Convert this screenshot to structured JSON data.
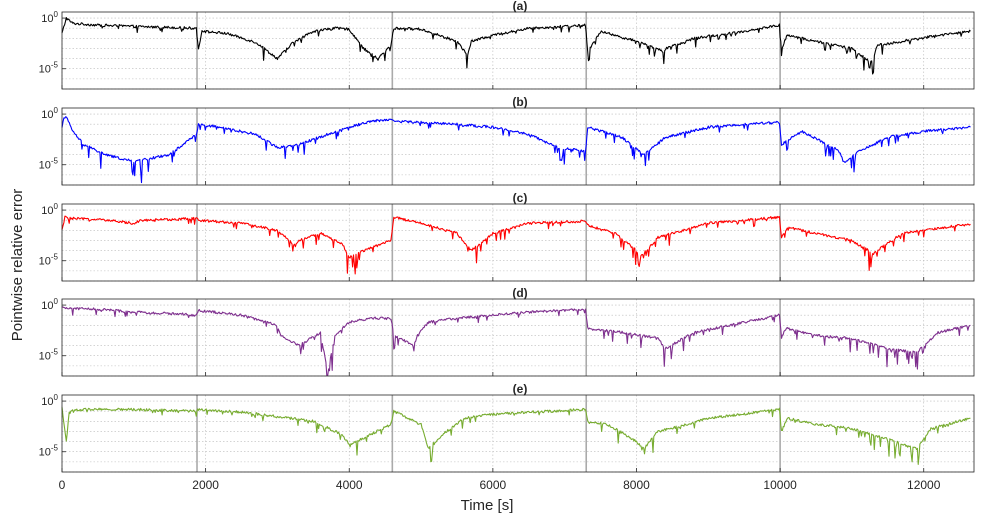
{
  "figure": {
    "ylabel": "Pointwise relative error",
    "xlabel": "Time [s]"
  },
  "chart_data": {
    "type": "line",
    "x_axis": {
      "label": "Time [s]",
      "range": [
        0,
        12700
      ],
      "ticks": [
        0,
        2000,
        4000,
        6000,
        8000,
        10000,
        12000
      ],
      "tick_labels": [
        "0",
        "2000",
        "4000",
        "6000",
        "8000",
        "10000",
        "12000"
      ]
    },
    "y_scale": "log",
    "shared_ylabel": "Pointwise relative error",
    "grid": true,
    "segment_boundaries": [
      1880,
      4600,
      7300,
      10000
    ],
    "panels": [
      {
        "title": "(a)",
        "color": "#000000",
        "y_range_exp": [
          -7,
          0.6
        ],
        "y_ticks": [
          {
            "base": "10",
            "exp": "0",
            "value": 1
          },
          {
            "base": "10",
            "exp": "-5",
            "value": 1e-05
          }
        ],
        "series": [
          {
            "x": [
              0,
              60,
              150,
              500,
              1000,
              1500,
              1870,
              1900,
              1950,
              2300,
              2700,
              3000,
              3200,
              3500,
              3800,
              4000,
              4200,
              4400,
              4580,
              4620,
              5000,
              5500,
              5650,
              5700,
              6000,
              6500,
              7000,
              7290,
              7320,
              7500,
              8000,
              8380,
              8420,
              8800,
              9500,
              9990,
              10020,
              10100,
              10500,
              11000,
              11250,
              11300,
              11350,
              11700,
              12200,
              12650
            ],
            "y": [
              0.03,
              1.0,
              0.3,
              0.2,
              0.15,
              0.12,
              0.1,
              0.001,
              0.05,
              0.03,
              0.004,
              0.0001,
              0.003,
              0.05,
              0.1,
              0.08,
              0.001,
              0.0001,
              0.002,
              0.1,
              0.08,
              0.005,
              0.0002,
              0.005,
              0.02,
              0.1,
              0.15,
              0.2,
              0.0005,
              0.05,
              0.005,
              0.0005,
              0.001,
              0.01,
              0.05,
              0.2,
              0.001,
              0.02,
              0.005,
              0.001,
              5e-05,
              0.0001,
              0.002,
              0.005,
              0.02,
              0.05
            ]
          }
        ]
      },
      {
        "title": "(b)",
        "color": "#0000FF",
        "y_range_exp": [
          -7,
          0.6
        ],
        "y_ticks": [
          {
            "base": "10",
            "exp": "0",
            "value": 1
          },
          {
            "base": "10",
            "exp": "-5",
            "value": 1e-05
          }
        ],
        "series": [
          {
            "x": [
              0,
              40,
              150,
              300,
              600,
              1000,
              1500,
              1870,
              1900,
              2200,
              2700,
              3000,
              3300,
              3700,
              4000,
              4300,
              4580,
              4620,
              5000,
              5500,
              6000,
              6500,
              6900,
              7290,
              7320,
              7800,
              8100,
              8400,
              9000,
              9500,
              9990,
              10020,
              10300,
              10800,
              10900,
              11100,
              11500,
              12000,
              12650
            ],
            "y": [
              0.05,
              1.0,
              0.02,
              0.001,
              0.0001,
              2e-05,
              0.0001,
              0.01,
              0.1,
              0.05,
              0.01,
              0.0005,
              0.001,
              0.01,
              0.05,
              0.2,
              0.3,
              0.2,
              0.15,
              0.1,
              0.05,
              0.01,
              0.0005,
              0.0002,
              0.05,
              0.005,
              0.0001,
              0.005,
              0.05,
              0.1,
              0.15,
              0.001,
              0.02,
              0.0003,
              2e-05,
              0.0002,
              0.005,
              0.02,
              0.05
            ]
          }
        ]
      },
      {
        "title": "(c)",
        "color": "#FF0000",
        "y_range_exp": [
          -7,
          0.6
        ],
        "y_ticks": [
          {
            "base": "10",
            "exp": "0",
            "value": 1
          },
          {
            "base": "10",
            "exp": "-5",
            "value": 1e-05
          }
        ],
        "series": [
          {
            "x": [
              0,
              40,
              100,
              500,
              1000,
              1100,
              1500,
              1870,
              1900,
              2500,
              3000,
              3250,
              3300,
              3600,
              3900,
              4000,
              4200,
              4580,
              4620,
              5000,
              5500,
              5700,
              6000,
              6500,
              7290,
              7320,
              7700,
              8000,
              8050,
              8300,
              9000,
              9990,
              10020,
              10100,
              10500,
              11000,
              11300,
              11350,
              11700,
              12300,
              12650
            ],
            "y": [
              0.01,
              0.2,
              0.15,
              0.12,
              0.05,
              0.1,
              0.12,
              0.15,
              0.1,
              0.05,
              0.01,
              0.0003,
              0.001,
              0.005,
              0.0005,
              2e-05,
              0.0001,
              0.001,
              0.2,
              0.05,
              0.005,
              0.0001,
              0.005,
              0.05,
              0.08,
              0.03,
              0.005,
              0.0001,
              2e-05,
              0.002,
              0.05,
              0.2,
              0.002,
              0.02,
              0.005,
              0.001,
              5e-05,
              0.0001,
              0.005,
              0.02,
              0.04
            ]
          }
        ]
      },
      {
        "title": "(d)",
        "color": "#7E2F8E",
        "y_range_exp": [
          -7,
          0.6
        ],
        "y_ticks": [
          {
            "base": "10",
            "exp": "0",
            "value": 1
          },
          {
            "base": "10",
            "exp": "-5",
            "value": 1e-05
          }
        ],
        "series": [
          {
            "x": [
              0,
              100,
              500,
              1000,
              1500,
              1870,
              1900,
              2500,
              3000,
              3050,
              3300,
              3600,
              3700,
              3800,
              4000,
              4300,
              4580,
              4620,
              4900,
              4950,
              5100,
              5500,
              6000,
              6500,
              7290,
              7320,
              7800,
              8300,
              8400,
              8800,
              9500,
              9990,
              10020,
              10100,
              10500,
              11000,
              11500,
              11900,
              12200,
              12650
            ],
            "y": [
              0.5,
              0.5,
              0.4,
              0.2,
              0.15,
              0.1,
              0.3,
              0.1,
              0.01,
              0.001,
              0.0001,
              0.002,
              2e-07,
              0.001,
              0.02,
              0.05,
              0.05,
              0.001,
              0.0001,
              0.001,
              0.02,
              0.05,
              0.1,
              0.2,
              0.4,
              0.005,
              0.002,
              0.0005,
              5e-05,
              0.002,
              0.02,
              0.1,
              0.001,
              0.005,
              0.001,
              0.0005,
              5e-05,
              2e-05,
              0.002,
              0.01
            ]
          }
        ]
      },
      {
        "title": "(e)",
        "color": "#77AC30",
        "y_range_exp": [
          -7,
          0.6
        ],
        "y_ticks": [
          {
            "base": "10",
            "exp": "0",
            "value": 1
          },
          {
            "base": "10",
            "exp": "-5",
            "value": 1e-05
          }
        ],
        "series": [
          {
            "x": [
              0,
              60,
              100,
              300,
              1000,
              1870,
              1900,
              2500,
              3000,
              3500,
              3900,
              4000,
              4300,
              4580,
              4620,
              5000,
              5100,
              5300,
              5600,
              6000,
              6500,
              7290,
              7320,
              7600,
              8000,
              8100,
              8300,
              8600,
              9000,
              9990,
              10020,
              10100,
              10500,
              11000,
              11600,
              11800,
              11900,
              12100,
              12650
            ],
            "y": [
              0.2,
              0.0001,
              0.1,
              0.15,
              0.15,
              0.1,
              0.15,
              0.08,
              0.03,
              0.01,
              0.0005,
              5e-05,
              0.0005,
              0.005,
              0.1,
              0.005,
              2e-05,
              0.0005,
              0.02,
              0.05,
              0.08,
              0.15,
              0.01,
              0.005,
              0.0001,
              2e-05,
              0.001,
              0.003,
              0.02,
              0.15,
              0.001,
              0.02,
              0.005,
              0.002,
              0.0001,
              3e-05,
              2e-05,
              0.002,
              0.02
            ]
          }
        ]
      }
    ]
  }
}
